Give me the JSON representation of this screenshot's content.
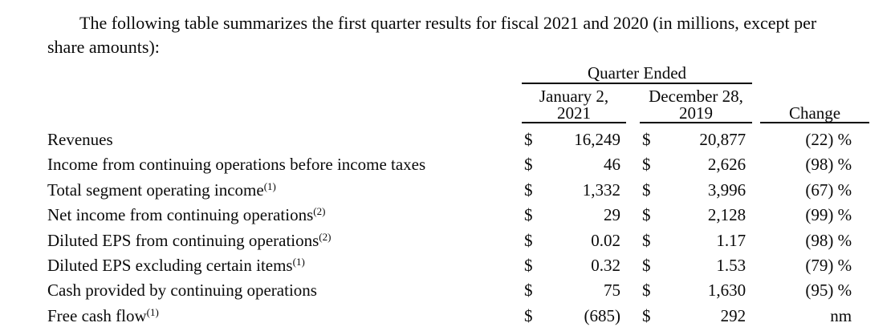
{
  "intro": {
    "text": "The following table summarizes the first quarter results for fiscal 2021 and 2020 (in millions, except per share amounts):"
  },
  "table": {
    "currency_symbol": "$",
    "header": {
      "quarter_ended": "Quarter Ended",
      "col_2021_line1": "January 2,",
      "col_2021_line2": "2021",
      "col_2019_line1": "December 28,",
      "col_2019_line2": "2019",
      "change": "Change"
    },
    "rows": [
      {
        "label": "Revenues",
        "sup": "",
        "fy2021": "16,249",
        "fy2020": "20,877",
        "change": "(22) %"
      },
      {
        "label": "Income from continuing operations before income taxes",
        "sup": "",
        "fy2021": "46",
        "fy2020": "2,626",
        "change": "(98) %"
      },
      {
        "label": "Total segment operating income",
        "sup": "(1)",
        "fy2021": "1,332",
        "fy2020": "3,996",
        "change": "(67) %"
      },
      {
        "label": "Net income from continuing operations",
        "sup": "(2)",
        "fy2021": "29",
        "fy2020": "2,128",
        "change": "(99) %"
      },
      {
        "label": "Diluted EPS from continuing operations",
        "sup": "(2)",
        "fy2021": "0.02",
        "fy2020": "1.17",
        "change": "(98) %"
      },
      {
        "label": "Diluted EPS excluding certain items",
        "sup": "(1)",
        "fy2021": "0.32",
        "fy2020": "1.53",
        "change": "(79) %"
      },
      {
        "label": "Cash provided by continuing operations",
        "sup": "",
        "fy2021": "75",
        "fy2020": "1,630",
        "change": "(95) %"
      },
      {
        "label": "Free cash flow",
        "sup": "(1)",
        "fy2021": "(685)",
        "fy2020": "292",
        "change": "nm"
      }
    ]
  }
}
